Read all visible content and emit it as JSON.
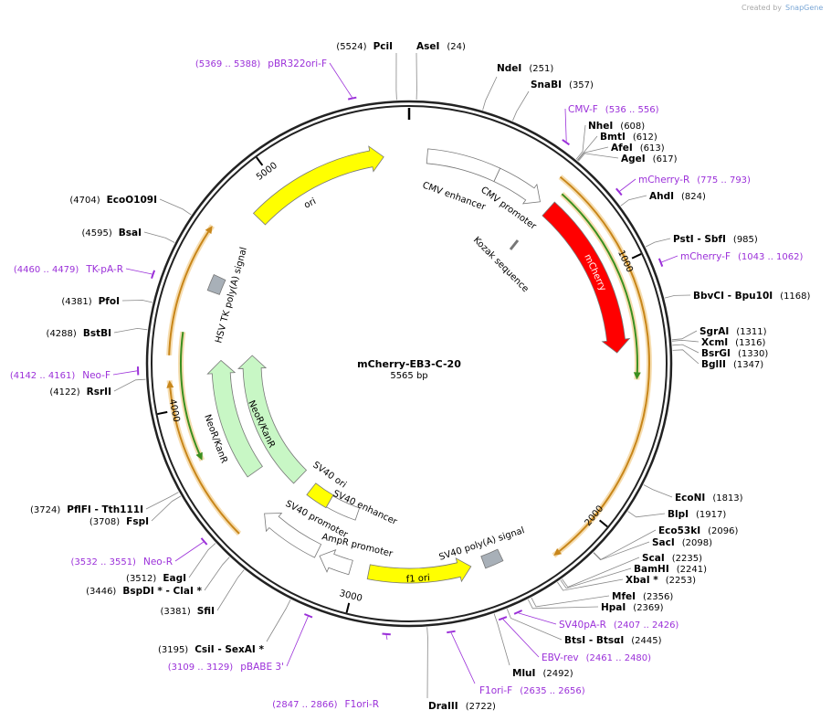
{
  "credit": {
    "prefix": "Created by",
    "brand": "SnapGene"
  },
  "plasmid": {
    "name": "mCherry-EB3-C-20",
    "length": "5565 bp"
  },
  "ticks": [
    "1000",
    "2000",
    "3000",
    "4000",
    "5000"
  ],
  "sites": [
    {
      "name": "PciI",
      "position": "(5524)"
    },
    {
      "name": "AseI",
      "position": "(24)"
    },
    {
      "name": "NdeI",
      "position": "(251)"
    },
    {
      "name": "SnaBI",
      "position": "(357)"
    },
    {
      "name": "NheI",
      "position": "(608)"
    },
    {
      "name": "BmtI",
      "position": "(612)"
    },
    {
      "name": "AfeI",
      "position": "(613)"
    },
    {
      "name": "AgeI",
      "position": "(617)"
    },
    {
      "name": "AhdI",
      "position": "(824)"
    },
    {
      "name": "PstI  - SbfI",
      "position": "(985)"
    },
    {
      "name": "BbvCI  - Bpu10I",
      "position": "(1168)"
    },
    {
      "name": "SgrAI",
      "position": "(1311)"
    },
    {
      "name": "XcmI",
      "position": "(1316)"
    },
    {
      "name": "BsrGI",
      "position": "(1330)"
    },
    {
      "name": "BglII",
      "position": "(1347)"
    },
    {
      "name": "EcoNI",
      "position": "(1813)"
    },
    {
      "name": "BlpI",
      "position": "(1917)"
    },
    {
      "name": "Eco53kI",
      "position": "(2096)"
    },
    {
      "name": "SacI",
      "position": "(2098)"
    },
    {
      "name": "ScaI",
      "position": "(2235)"
    },
    {
      "name": "BamHI",
      "position": "(2241)"
    },
    {
      "name": "XbaI *",
      "position": "(2253)"
    },
    {
      "name": "MfeI",
      "position": "(2356)"
    },
    {
      "name": "HpaI",
      "position": "(2369)"
    },
    {
      "name": "BtsI  - BtsαI",
      "position": "(2445)"
    },
    {
      "name": "MluI",
      "position": "(2492)"
    },
    {
      "name": "DraIII",
      "position": "(2722)"
    },
    {
      "name": "CsiI  - SexAI *",
      "position": "(3195)"
    },
    {
      "name": "SfiI",
      "position": "(3381)"
    },
    {
      "name": "BspDI *  - ClaI *",
      "position": "(3446)"
    },
    {
      "name": "EagI",
      "position": "(3512)"
    },
    {
      "name": "PflFI  - Tth111I",
      "position": "(3724)"
    },
    {
      "name": "FspI",
      "position": "(3708)"
    },
    {
      "name": "RsrII",
      "position": "(4122)"
    },
    {
      "name": "BstBI",
      "position": "(4288)"
    },
    {
      "name": "PfoI",
      "position": "(4381)"
    },
    {
      "name": "BsaI",
      "position": "(4595)"
    },
    {
      "name": "EcoO109I",
      "position": "(4704)"
    }
  ],
  "primers": [
    {
      "name": "pBR322ori-F",
      "range": "(5369 .. 5388)"
    },
    {
      "name": "CMV-F",
      "range": "(536 .. 556)"
    },
    {
      "name": "mCherry-R",
      "range": "(775 .. 793)"
    },
    {
      "name": "mCherry-F",
      "range": "(1043 .. 1062)"
    },
    {
      "name": "TK-pA-R",
      "range": "(4460 .. 4479)"
    },
    {
      "name": "Neo-F",
      "range": "(4142 .. 4161)"
    },
    {
      "name": "Neo-R",
      "range": "(3532 .. 3551)"
    },
    {
      "name": "pBABE 3'",
      "range": "(3109 .. 3129)"
    },
    {
      "name": "F1ori-R",
      "range": "(2847 .. 2866)"
    },
    {
      "name": "F1ori-F",
      "range": "(2635 .. 2656)"
    },
    {
      "name": "EBV-rev",
      "range": "(2461 .. 2480)"
    },
    {
      "name": "SV40pA-R",
      "range": "(2407 .. 2426)"
    }
  ],
  "features": [
    "ori",
    "CMV enhancer",
    "CMV promoter",
    "Kozak sequence",
    "mCherry",
    "HSV TK poly(A) signal",
    "NeoR/KanR",
    "NeoR/KanR",
    "SV40 ori",
    "SV40 enhancer",
    "SV40 promoter",
    "AmpR promoter",
    "f1 ori",
    "SV40 poly(A) signal"
  ]
}
